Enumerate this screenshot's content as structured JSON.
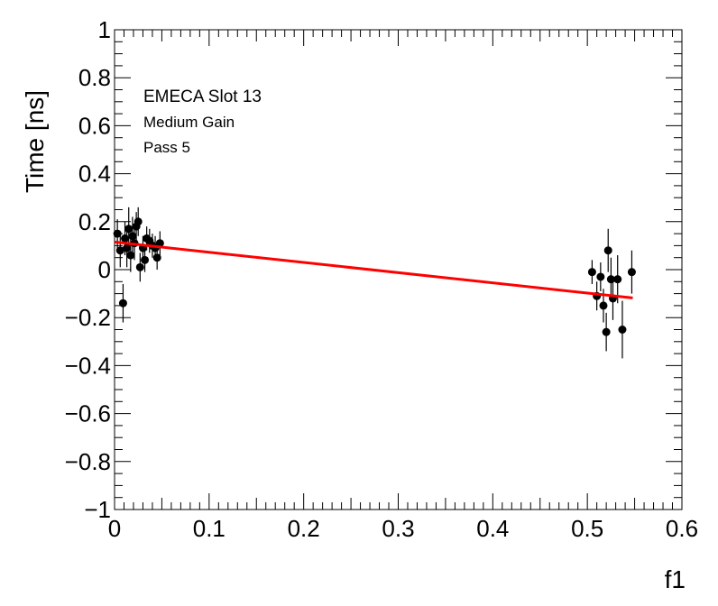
{
  "chart_data": {
    "type": "scatter",
    "xlabel": "f1",
    "ylabel": "Time [ns]",
    "xlim": [
      0,
      0.6
    ],
    "ylim": [
      -1,
      1
    ],
    "x_ticks": [
      "0",
      "0.1",
      "0.2",
      "0.3",
      "0.4",
      "0.5",
      "0.6"
    ],
    "y_ticks": [
      "-1",
      "-0.8",
      "-0.6",
      "-0.4",
      "-0.2",
      "0",
      "0.2",
      "0.4",
      "0.6",
      "0.8",
      "1"
    ],
    "annotations": [
      "EMECA Slot 13",
      "Medium Gain",
      "Pass 5"
    ],
    "colors": {
      "points": "#000000",
      "fit": "#ff0000"
    },
    "fit_line": {
      "x": [
        0.0,
        0.548
      ],
      "y": [
        0.115,
        -0.118
      ]
    },
    "series": [
      {
        "points": [
          [
            0.003,
            0.15,
            0.06
          ],
          [
            0.006,
            0.08,
            0.07
          ],
          [
            0.009,
            -0.14,
            0.08
          ],
          [
            0.011,
            0.13,
            0.07
          ],
          [
            0.013,
            0.09,
            0.08
          ],
          [
            0.015,
            0.17,
            0.09
          ],
          [
            0.017,
            0.06,
            0.07
          ],
          [
            0.019,
            0.14,
            0.08
          ],
          [
            0.021,
            0.11,
            0.07
          ],
          [
            0.023,
            0.18,
            0.06
          ],
          [
            0.025,
            0.2,
            0.06
          ],
          [
            0.027,
            0.01,
            0.06
          ],
          [
            0.03,
            0.09,
            0.05
          ],
          [
            0.032,
            0.04,
            0.05
          ],
          [
            0.034,
            0.13,
            0.05
          ],
          [
            0.037,
            0.12,
            0.05
          ],
          [
            0.04,
            0.1,
            0.05
          ],
          [
            0.043,
            0.09,
            0.05
          ],
          [
            0.045,
            0.05,
            0.05
          ],
          [
            0.048,
            0.11,
            0.05
          ],
          [
            0.505,
            -0.01,
            0.05
          ],
          [
            0.51,
            -0.11,
            0.06
          ],
          [
            0.514,
            -0.03,
            0.06
          ],
          [
            0.517,
            -0.15,
            0.07
          ],
          [
            0.52,
            -0.26,
            0.08
          ],
          [
            0.522,
            0.08,
            0.09
          ],
          [
            0.525,
            -0.04,
            0.09
          ],
          [
            0.527,
            -0.12,
            0.09
          ],
          [
            0.532,
            -0.04,
            0.1
          ],
          [
            0.537,
            -0.25,
            0.12
          ],
          [
            0.547,
            -0.01,
            0.09
          ]
        ]
      }
    ]
  }
}
